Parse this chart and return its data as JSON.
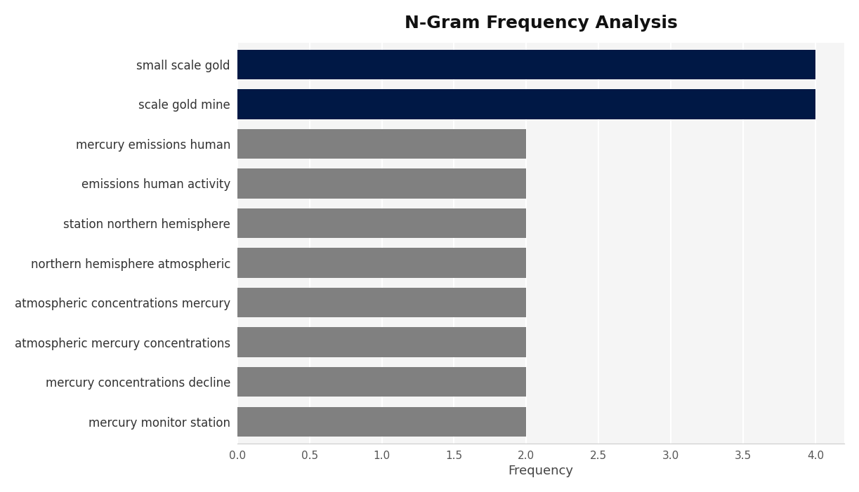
{
  "title": "N-Gram Frequency Analysis",
  "xlabel": "Frequency",
  "categories": [
    "mercury monitor station",
    "mercury concentrations decline",
    "atmospheric mercury concentrations",
    "atmospheric concentrations mercury",
    "northern hemisphere atmospheric",
    "station northern hemisphere",
    "emissions human activity",
    "mercury emissions human",
    "scale gold mine",
    "small scale gold"
  ],
  "values": [
    2,
    2,
    2,
    2,
    2,
    2,
    2,
    2,
    4,
    4
  ],
  "bar_colors": [
    "#808080",
    "#808080",
    "#808080",
    "#808080",
    "#808080",
    "#808080",
    "#808080",
    "#808080",
    "#001845",
    "#001845"
  ],
  "xlim": [
    0,
    4.2
  ],
  "xticks": [
    0.0,
    0.5,
    1.0,
    1.5,
    2.0,
    2.5,
    3.0,
    3.5,
    4.0
  ],
  "plot_bg_color": "#f5f5f5",
  "fig_bg_color": "#ffffff",
  "title_fontsize": 18,
  "label_fontsize": 12,
  "tick_fontsize": 11,
  "bar_height": 0.75
}
